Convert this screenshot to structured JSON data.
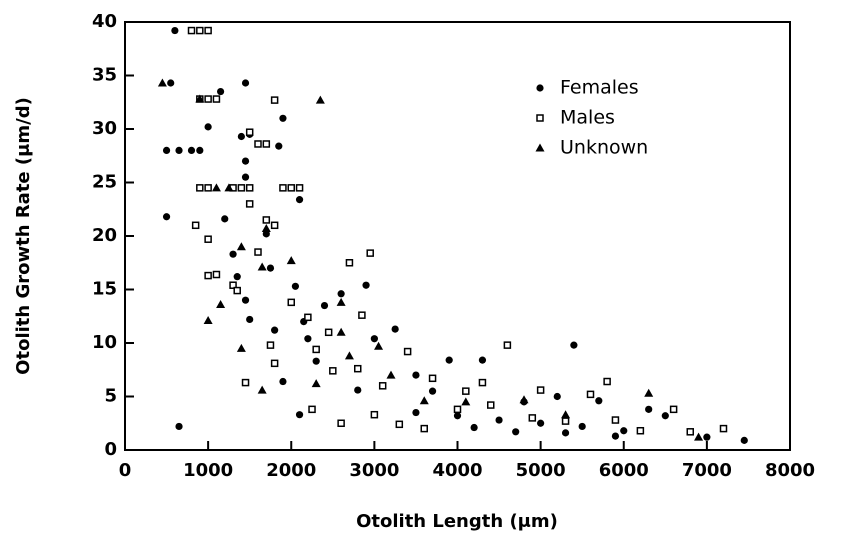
{
  "chart_data": {
    "type": "scatter",
    "x_label": "Otolith Length (μm)",
    "y_label": "Otolith Growth Rate (μm/d)",
    "xlim": [
      0,
      8000
    ],
    "xticks": [
      0,
      1000,
      2000,
      3000,
      4000,
      5000,
      6000,
      7000,
      8000
    ],
    "ylim": [
      0,
      40
    ],
    "yticks": [
      0,
      5,
      10,
      15,
      20,
      25,
      30,
      35,
      40
    ],
    "legend": "top-right",
    "series": [
      {
        "name": "Females",
        "color": "#000000",
        "marker": "circle",
        "x": [
          500,
          550,
          600,
          500,
          650,
          800,
          900,
          650,
          1150,
          1000,
          1450,
          1400,
          1500,
          1450,
          1450,
          1850,
          1900,
          2100,
          1200,
          1300,
          1350,
          1450,
          1500,
          1700,
          1750,
          1800,
          1900,
          2050,
          2150,
          2200,
          2300,
          2400,
          2600,
          2900,
          3000,
          3250,
          3500,
          3900,
          4300,
          5400,
          2100,
          2800,
          3500,
          4000,
          4500,
          5000,
          5500,
          6000,
          6500,
          7000,
          7450,
          4800,
          5200,
          5700,
          6300,
          3700,
          4200,
          4700,
          5300,
          5900
        ],
        "values": [
          21.8,
          34.3,
          39.2,
          28,
          28,
          28,
          28,
          2.2,
          33.5,
          30.2,
          34.3,
          29.3,
          29.5,
          27,
          25.5,
          28.4,
          31,
          23.4,
          21.6,
          18.3,
          16.2,
          14,
          12.2,
          20.2,
          17,
          11.2,
          6.4,
          15.3,
          12,
          10.4,
          8.3,
          13.5,
          14.6,
          15.4,
          10.4,
          11.3,
          7,
          8.4,
          8.4,
          9.8,
          3.3,
          5.6,
          3.5,
          3.2,
          2.8,
          2.5,
          2.2,
          1.8,
          3.2,
          1.2,
          0.9,
          4.5,
          5,
          4.6,
          3.8,
          5.5,
          2.1,
          1.7,
          1.6,
          1.3
        ]
      },
      {
        "name": "Males",
        "color": "#000000",
        "marker": "square",
        "x": [
          800,
          900,
          1000,
          900,
          1000,
          1100,
          1600,
          1700,
          1500,
          1800,
          900,
          1000,
          1300,
          1400,
          1500,
          1900,
          2000,
          2100,
          850,
          1000,
          1000,
          1100,
          1300,
          1350,
          1500,
          1700,
          1800,
          1600,
          2000,
          2200,
          2450,
          2700,
          2850,
          2950,
          1450,
          1750,
          1800,
          2300,
          2500,
          2800,
          3100,
          3400,
          3700,
          4100,
          4600,
          5800,
          2250,
          2600,
          3000,
          3300,
          3600,
          4000,
          4400,
          4900,
          5300,
          5900,
          6200,
          6600,
          6800,
          7200,
          4300,
          5000,
          5600
        ],
        "values": [
          39.2,
          39.2,
          39.2,
          32.8,
          32.8,
          32.8,
          28.6,
          28.6,
          29.7,
          32.7,
          24.5,
          24.5,
          24.5,
          24.5,
          24.5,
          24.5,
          24.5,
          24.5,
          21,
          19.7,
          16.3,
          16.4,
          15.4,
          14.9,
          23,
          21.5,
          21,
          18.5,
          13.8,
          12.4,
          11,
          17.5,
          12.6,
          18.4,
          6.3,
          9.8,
          8.1,
          9.4,
          7.4,
          7.6,
          6,
          9.2,
          6.7,
          5.5,
          9.8,
          6.4,
          3.8,
          2.5,
          3.3,
          2.4,
          2,
          3.8,
          4.2,
          3,
          2.7,
          2.8,
          1.8,
          3.8,
          1.7,
          2,
          6.3,
          5.6,
          5.2
        ]
      },
      {
        "name": "Unknown",
        "color": "#000000",
        "marker": "triangle",
        "x": [
          450,
          900,
          1100,
          1250,
          1000,
          1150,
          1400,
          1650,
          1650,
          1700,
          2000,
          2350,
          2600,
          2600,
          2300,
          2700,
          3050,
          3200,
          3600,
          4100,
          4800,
          5300,
          6300,
          6900,
          1400
        ],
        "values": [
          34.3,
          32.8,
          24.5,
          24.5,
          12.1,
          13.6,
          9.5,
          5.6,
          17.1,
          20.7,
          17.7,
          32.7,
          13.8,
          11,
          6.2,
          8.8,
          9.7,
          7,
          4.6,
          4.5,
          4.7,
          3.3,
          5.3,
          1.2,
          19
        ]
      }
    ]
  }
}
